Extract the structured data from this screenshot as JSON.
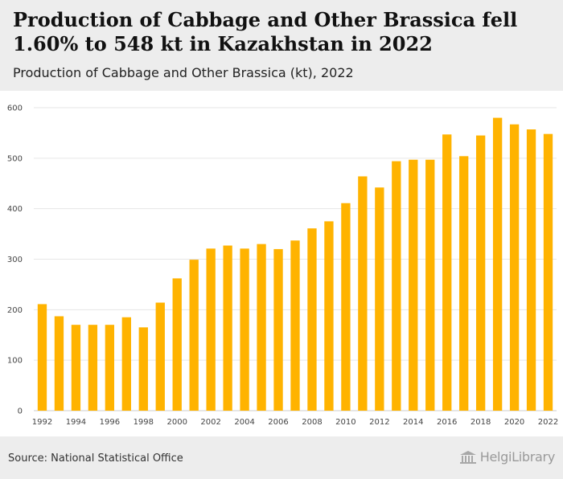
{
  "header": {
    "title": "Production of Cabbage and Other Brassica fell 1.60% to 548 kt in Kazakhstan in 2022",
    "subtitle": "Production of Cabbage and Other Brassica (kt), 2022"
  },
  "footer": {
    "source": "Source: National Statistical Office",
    "logo_text": "HelgiLibrary"
  },
  "colors": {
    "bar": "#FFB300",
    "grid": "#e6e6e6",
    "background_band": "#ededed"
  },
  "chart_data": {
    "type": "bar",
    "title": "Production of Cabbage and Other Brassica fell 1.60% to 548 kt in Kazakhstan in 2022",
    "subtitle": "Production of Cabbage and Other Brassica (kt), 2022",
    "xlabel": "",
    "ylabel": "",
    "ylim": [
      0,
      600
    ],
    "yticks": [
      0,
      100,
      200,
      300,
      400,
      500,
      600
    ],
    "grid": true,
    "x_tick_labels": [
      "1992",
      "1994",
      "1996",
      "1998",
      "2000",
      "2002",
      "2004",
      "2006",
      "2008",
      "2010",
      "2012",
      "2014",
      "2016",
      "2018",
      "2020",
      "2022"
    ],
    "categories": [
      "1992",
      "1993",
      "1994",
      "1995",
      "1996",
      "1997",
      "1998",
      "1999",
      "2000",
      "2001",
      "2002",
      "2003",
      "2004",
      "2005",
      "2006",
      "2007",
      "2008",
      "2009",
      "2010",
      "2011",
      "2012",
      "2013",
      "2014",
      "2015",
      "2016",
      "2017",
      "2018",
      "2019",
      "2020",
      "2021",
      "2022"
    ],
    "values": [
      211,
      187,
      170,
      170,
      170,
      185,
      165,
      214,
      262,
      299,
      321,
      327,
      321,
      330,
      320,
      337,
      361,
      375,
      411,
      464,
      442,
      494,
      497,
      497,
      547,
      504,
      545,
      580,
      567,
      557,
      548
    ]
  }
}
